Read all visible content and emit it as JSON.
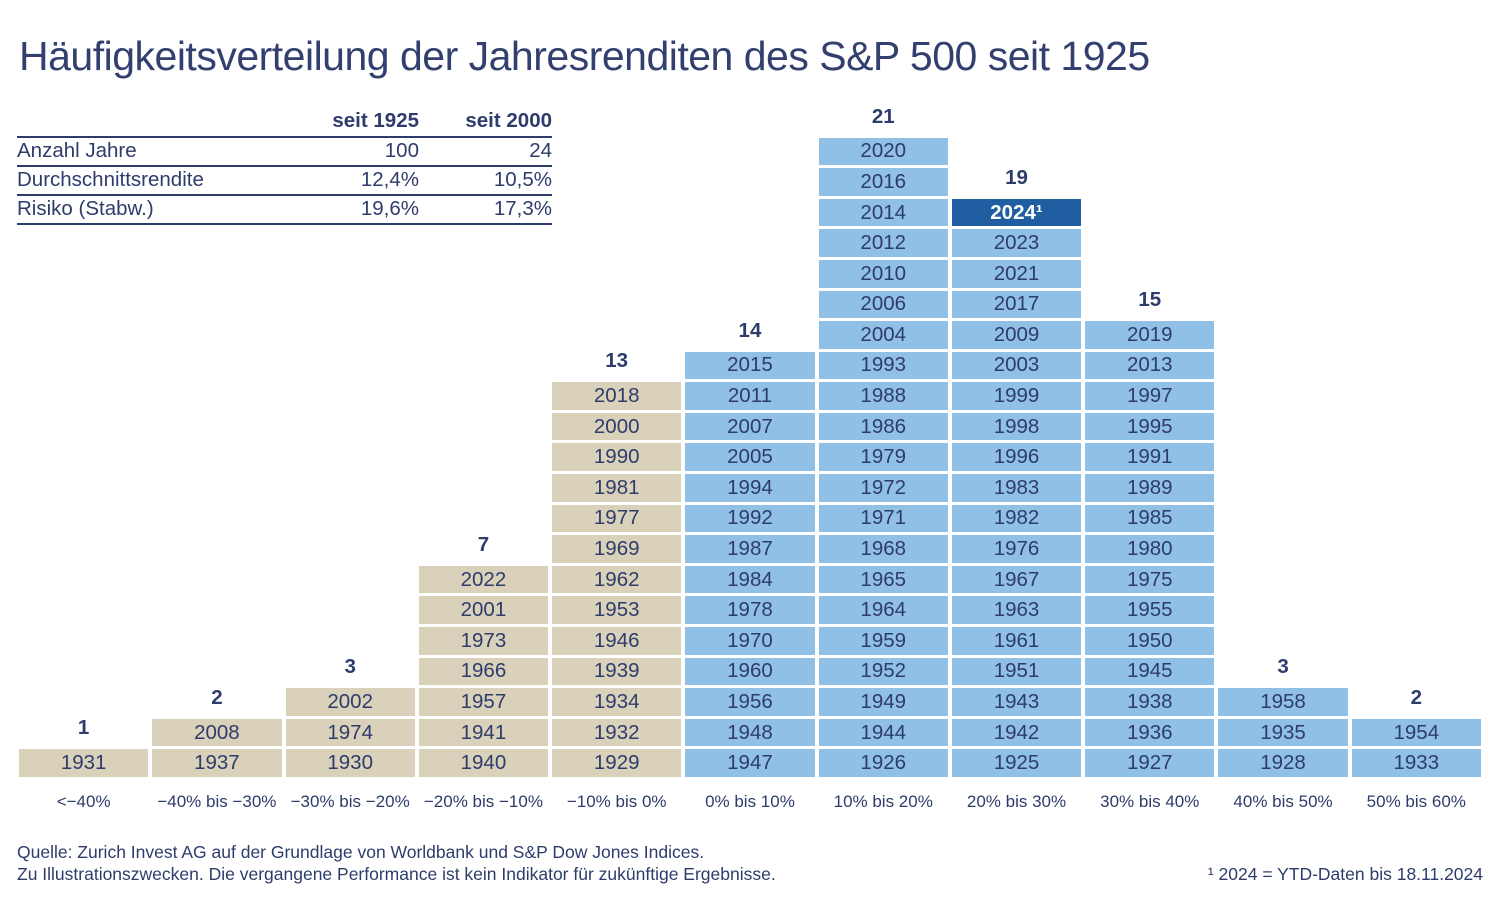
{
  "title": "Häufigkeitsverteilung der Jahresrenditen des S&P 500 seit 1925",
  "colors": {
    "navy_text": "#2e3c6b",
    "negative_tan": "#d9d1ba",
    "positive_blue": "#90c0e5",
    "highlight_blue": "#1f5ea0",
    "highlight_text": "#ffffff"
  },
  "stats_table": {
    "headers": [
      "seit 1925",
      "seit 2000"
    ],
    "rows": [
      {
        "label": "Anzahl Jahre",
        "values": [
          "100",
          "24"
        ]
      },
      {
        "label": "Durchschnittsrendite",
        "values": [
          "12,4%",
          "10,5%"
        ]
      },
      {
        "label": "Risiko (Stabw.)",
        "values": [
          "19,6%",
          "17,3%"
        ]
      }
    ]
  },
  "chart_data": {
    "type": "bar",
    "title": "Häufigkeitsverteilung der Jahresrenditen des S&P 500 seit 1925",
    "categories": [
      "<−40%",
      "−40% bis −30%",
      "−30% bis −20%",
      "−20% bis −10%",
      "−10% bis 0%",
      "0% bis 10%",
      "10% bis 20%",
      "20% bis 30%",
      "30% bis 40%",
      "40% bis 50%",
      "50% bis 60%"
    ],
    "values": [
      1,
      2,
      3,
      7,
      13,
      14,
      21,
      19,
      15,
      3,
      2
    ],
    "highlight_year": "2024¹",
    "legend_position": "none",
    "grid": false,
    "columns": [
      {
        "category": "<−40%",
        "count": 1,
        "sentiment": "negative",
        "years": [
          "1931"
        ]
      },
      {
        "category": "−40% bis −30%",
        "count": 2,
        "sentiment": "negative",
        "years": [
          "2008",
          "1937"
        ]
      },
      {
        "category": "−30% bis −20%",
        "count": 3,
        "sentiment": "negative",
        "years": [
          "2002",
          "1974",
          "1930"
        ]
      },
      {
        "category": "−20% bis −10%",
        "count": 7,
        "sentiment": "negative",
        "years": [
          "2022",
          "2001",
          "1973",
          "1966",
          "1957",
          "1941",
          "1940"
        ]
      },
      {
        "category": "−10% bis 0%",
        "count": 13,
        "sentiment": "negative",
        "years": [
          "2018",
          "2000",
          "1990",
          "1981",
          "1977",
          "1969",
          "1962",
          "1953",
          "1946",
          "1939",
          "1934",
          "1932",
          "1929"
        ]
      },
      {
        "category": "0% bis 10%",
        "count": 14,
        "sentiment": "positive",
        "years": [
          "2015",
          "2011",
          "2007",
          "2005",
          "1994",
          "1992",
          "1987",
          "1984",
          "1978",
          "1970",
          "1960",
          "1956",
          "1948",
          "1947"
        ]
      },
      {
        "category": "10% bis 20%",
        "count": 21,
        "sentiment": "positive",
        "years": [
          "2020",
          "2016",
          "2014",
          "2012",
          "2010",
          "2006",
          "2004",
          "1993",
          "1988",
          "1986",
          "1979",
          "1972",
          "1971",
          "1968",
          "1965",
          "1964",
          "1959",
          "1952",
          "1949",
          "1944",
          "1926"
        ]
      },
      {
        "category": "20% bis 30%",
        "count": 19,
        "sentiment": "positive",
        "years": [
          "2024¹",
          "2023",
          "2021",
          "2017",
          "2009",
          "2003",
          "1999",
          "1998",
          "1996",
          "1983",
          "1982",
          "1976",
          "1967",
          "1963",
          "1961",
          "1951",
          "1943",
          "1942",
          "1925"
        ]
      },
      {
        "category": "30% bis 40%",
        "count": 15,
        "sentiment": "positive",
        "years": [
          "2019",
          "2013",
          "1997",
          "1995",
          "1991",
          "1989",
          "1985",
          "1980",
          "1975",
          "1955",
          "1950",
          "1945",
          "1938",
          "1936",
          "1927"
        ]
      },
      {
        "category": "40% bis 50%",
        "count": 3,
        "sentiment": "positive",
        "years": [
          "1958",
          "1935",
          "1928"
        ]
      },
      {
        "category": "50% bis 60%",
        "count": 2,
        "sentiment": "positive",
        "years": [
          "1954",
          "1933"
        ]
      }
    ]
  },
  "footer": {
    "source": "Quelle: Zurich Invest AG auf der Grundlage von Worldbank und S&P Dow Jones Indices.",
    "disclaimer": "Zu Illustrationszwecken. Die vergangene Performance ist kein Indikator für zukünftige Ergebnisse.",
    "footnote": "¹ 2024 = YTD-Daten bis 18.11.2024"
  }
}
